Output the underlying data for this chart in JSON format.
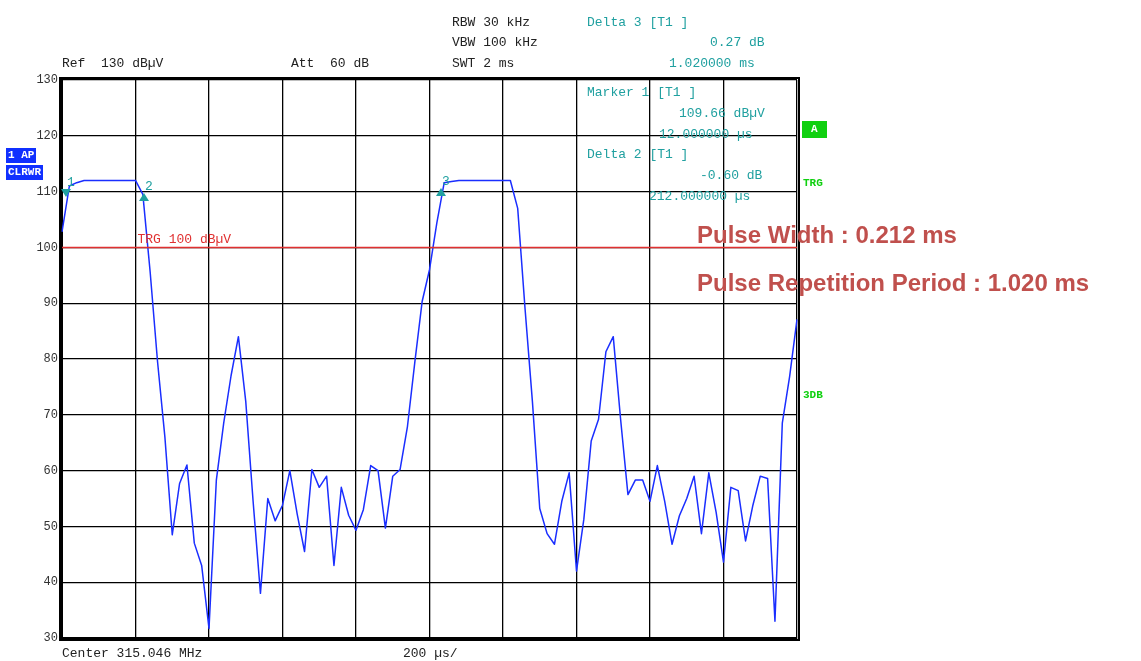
{
  "chart_data": {
    "type": "line",
    "categories": [
      null,
      null,
      null,
      null,
      null,
      null,
      null,
      null,
      null,
      null,
      null,
      null,
      null,
      null,
      null,
      null,
      null,
      null,
      null,
      null,
      null,
      null,
      null,
      null,
      null,
      null,
      null,
      null,
      null,
      null,
      null,
      null,
      null,
      null,
      null,
      null,
      null,
      null,
      null,
      null,
      null,
      null,
      null,
      null,
      null,
      null,
      null,
      null,
      null,
      null,
      null,
      null,
      null,
      null,
      null,
      null,
      null,
      null,
      null,
      null,
      null,
      null,
      null,
      null,
      null,
      null,
      null,
      null,
      null,
      null,
      null,
      null,
      null,
      null,
      null,
      null,
      null,
      null,
      null,
      null,
      null,
      null,
      null,
      null,
      null,
      null,
      null,
      null,
      null,
      null,
      null,
      null,
      null,
      null,
      null,
      null,
      null,
      null,
      null,
      null,
      null
    ],
    "ylim": [
      30,
      130
    ],
    "yticks": [
      30,
      40,
      50,
      60,
      70,
      80,
      90,
      100,
      110,
      120,
      130
    ],
    "tick_labels": "y",
    "grid": true,
    "series": [
      {
        "color": "#1a2eff",
        "values": [
          102.8,
          111,
          111.6,
          112,
          112,
          112,
          112,
          112,
          112,
          112,
          112,
          109.5,
          95.5,
          79.5,
          66,
          48.5,
          57.7,
          61,
          47,
          43,
          31.7,
          58.3,
          68.5,
          77,
          84,
          72.4,
          54.5,
          38,
          55,
          51,
          53.8,
          60,
          52.2,
          45.5,
          60.2,
          57,
          59,
          43,
          57,
          52,
          49.3,
          53,
          60.9,
          60,
          49.7,
          59,
          60.2,
          67.9,
          79.4,
          90.3,
          96,
          104.4,
          111.6,
          111.8,
          112,
          112,
          112,
          112,
          112,
          112,
          112,
          112,
          107,
          89,
          72.4,
          53.2,
          48.7,
          46.8,
          54.5,
          59.6,
          42,
          51.3,
          65.3,
          69.2,
          81.3,
          84,
          69.2,
          55.7,
          58.3,
          58.3,
          54.5,
          60.9,
          54.5,
          46.8,
          51.9,
          55,
          59,
          48.7,
          59.6,
          52.5,
          43.6,
          57,
          56.4,
          47.4,
          53.8,
          59,
          58.6,
          33,
          68.5,
          76.9,
          87.1
        ]
      }
    ],
    "ref_lines": [
      {
        "axis": "y",
        "value": 100,
        "label": "TRG 100 dBµV",
        "color": "#e03030"
      }
    ],
    "annotations": [
      "Ref  130 dBµV",
      "Att  60 dB",
      "RBW 30 kHz",
      "VBW 100 kHz",
      "SWT 2 ms",
      "Delta 3 [T1 ]",
      "0.27 dB",
      "1.020000 ms",
      "Marker 1 [T1 ]",
      "109.66 dBµV",
      "12.000000 µs",
      "Delta 2 [T1 ]",
      "-0.60 dB",
      "212.000000 µs",
      "1 AP",
      "CLRWR",
      "A",
      "TRG",
      "3DB",
      "Center 315.046 MHz",
      "200 µs/",
      "Pulse Width : 0.212 ms",
      "Pulse Repetition Period : 1.020 ms",
      "1",
      "2",
      "3"
    ]
  }
}
